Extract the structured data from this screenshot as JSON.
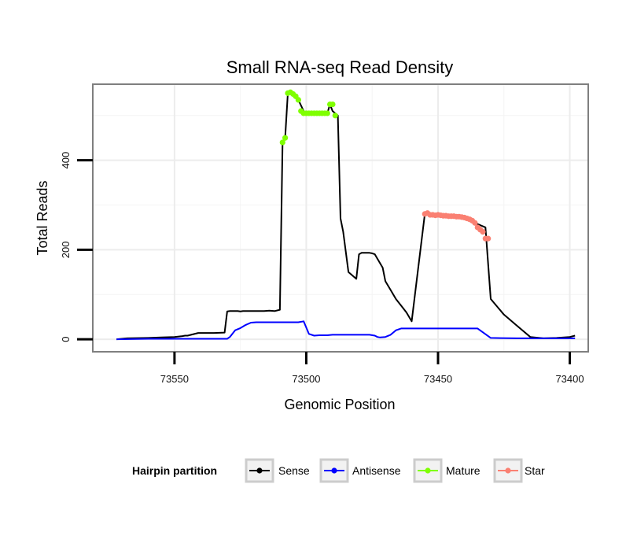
{
  "chart_data": {
    "type": "line",
    "title": "Small RNA-seq Read Density",
    "xlabel": "Genomic Position",
    "ylabel": "Total Reads",
    "xlim": [
      73581,
      73393
    ],
    "ylim": [
      -28,
      570
    ],
    "x_reversed": true,
    "x_ticks": [
      73550,
      73500,
      73450,
      73400
    ],
    "x_tick_labels": [
      "73550",
      "73500",
      "73450",
      "73400"
    ],
    "y_ticks": [
      0,
      200,
      400
    ],
    "y_tick_labels": [
      "0",
      "200",
      "400"
    ],
    "legend": {
      "title": "Hairpin partition",
      "position": "bottom",
      "entries": [
        {
          "label": "Sense",
          "color": "#000000"
        },
        {
          "label": "Antisense",
          "color": "#0000ff"
        },
        {
          "label": "Mature",
          "color": "#7fff00"
        },
        {
          "label": "Star",
          "color": "#fa8072"
        }
      ]
    },
    "series": [
      {
        "name": "Sense",
        "color": "#000000",
        "style": "line",
        "x": [
          73572,
          73568,
          73560,
          73555,
          73550,
          73547,
          73546,
          73545,
          73541,
          73535,
          73531,
          73530,
          73529,
          73528,
          73527,
          73526,
          73525,
          73524,
          73523,
          73522,
          73520,
          73518,
          73516,
          73514,
          73512,
          73510,
          73509,
          73508,
          73507,
          73506,
          73505,
          73504,
          73503,
          73501,
          73500,
          73499,
          73495,
          73493,
          73492,
          73491,
          73490,
          73489,
          73488,
          73487,
          73486,
          73484,
          73482,
          73481,
          73480,
          73479,
          73478,
          73477,
          73476,
          73475,
          73475,
          73474,
          73473,
          73471,
          73470,
          73468,
          73466,
          73464,
          73462,
          73460,
          73455,
          73450,
          73449,
          73448,
          73447,
          73446,
          73445,
          73444,
          73440,
          73436,
          73432,
          73430,
          73425,
          73420,
          73415,
          73410,
          73405,
          73400,
          73398
        ],
        "y": [
          0,
          2,
          3,
          4,
          5,
          7,
          8,
          8,
          14,
          14,
          15,
          62,
          63,
          63,
          63,
          63,
          62,
          63,
          63,
          63,
          63,
          63,
          63,
          64,
          63,
          66,
          440,
          450,
          550,
          552,
          548,
          543,
          535,
          510,
          505,
          505,
          505,
          505,
          505,
          525,
          510,
          505,
          500,
          270,
          240,
          150,
          140,
          135,
          190,
          193,
          193,
          193,
          193,
          192,
          192,
          190,
          180,
          160,
          130,
          110,
          90,
          75,
          60,
          40,
          280,
          278,
          277,
          276,
          275,
          275,
          275,
          275,
          270,
          260,
          250,
          90,
          55,
          30,
          5,
          2,
          3,
          5,
          8
        ]
      },
      {
        "name": "Antisense",
        "color": "#0000ff",
        "style": "line",
        "x": [
          73572,
          73560,
          73550,
          73540,
          73530,
          73529,
          73527,
          73525,
          73523,
          73521,
          73519,
          73516,
          73512,
          73508,
          73505,
          73503,
          73501,
          73499,
          73497,
          73495,
          73492,
          73490,
          73488,
          73484,
          73480,
          73478,
          73476,
          73474,
          73473,
          73472,
          73470,
          73468,
          73466,
          73464,
          73460,
          73455,
          73450,
          73445,
          73440,
          73435,
          73430,
          73420,
          73410,
          73405,
          73400,
          73398
        ],
        "y": [
          0,
          1,
          1,
          1,
          1,
          5,
          20,
          25,
          32,
          37,
          38,
          38,
          38,
          38,
          38,
          38,
          40,
          12,
          8,
          9,
          9,
          10,
          10,
          10,
          10,
          10,
          10,
          8,
          5,
          4,
          5,
          10,
          20,
          24,
          24,
          24,
          24,
          24,
          24,
          24,
          3,
          2,
          2,
          2,
          2,
          2
        ]
      },
      {
        "name": "Mature",
        "color": "#7fff00",
        "style": "points",
        "x": [
          73509,
          73508,
          73507,
          73506,
          73505,
          73504,
          73503,
          73502,
          73501,
          73500,
          73499,
          73498,
          73497,
          73496,
          73495,
          73494,
          73493,
          73492,
          73491,
          73490,
          73489
        ],
        "y": [
          440,
          450,
          550,
          552,
          548,
          543,
          535,
          510,
          505,
          505,
          505,
          505,
          505,
          505,
          505,
          505,
          505,
          505,
          525,
          525,
          500
        ]
      },
      {
        "name": "Star",
        "color": "#fa8072",
        "style": "points",
        "x": [
          73455,
          73454,
          73453,
          73452,
          73451,
          73450,
          73449,
          73448,
          73447,
          73446,
          73445,
          73444,
          73443,
          73442,
          73441,
          73440,
          73439,
          73438,
          73437,
          73436,
          73435,
          73434,
          73433,
          73432,
          73431
        ],
        "y": [
          280,
          282,
          278,
          278,
          277,
          278,
          277,
          276,
          276,
          275,
          275,
          275,
          274,
          274,
          273,
          272,
          270,
          268,
          265,
          260,
          250,
          245,
          240,
          225,
          225
        ]
      }
    ]
  }
}
